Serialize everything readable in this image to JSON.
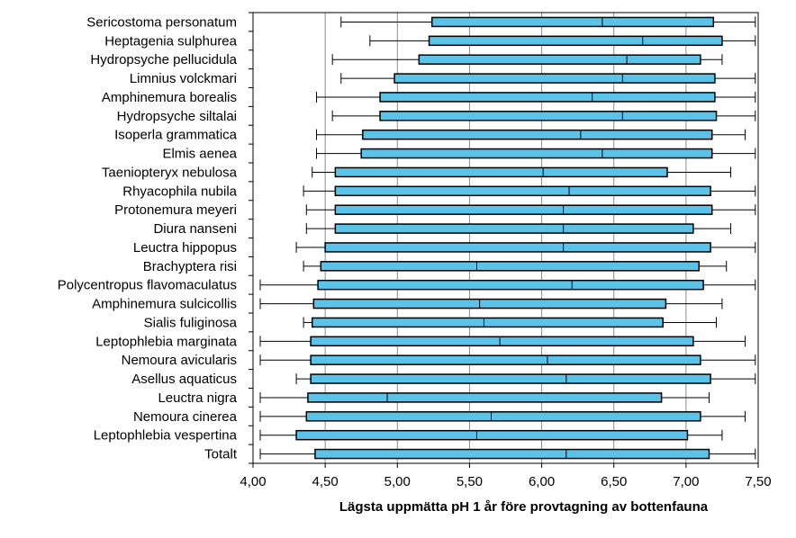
{
  "chart_data": {
    "type": "boxplot",
    "orientation": "horizontal",
    "xlabel": "Lägsta uppmätta pH 1 år före provtagning av bottenfauna",
    "xlim": [
      4.0,
      7.5
    ],
    "x_ticks": [
      4.0,
      4.5,
      5.0,
      5.5,
      6.0,
      6.5,
      7.0,
      7.5
    ],
    "x_tick_labels": [
      "4,00",
      "4,50",
      "5,00",
      "5,50",
      "6,00",
      "6,50",
      "7,00",
      "7,50"
    ],
    "grid": "vertical major gridlines",
    "box_color": "#5BC3E8",
    "series": [
      {
        "name": "Sericostoma personatum",
        "min": 4.61,
        "q1": 5.24,
        "median": 6.42,
        "q3": 7.19,
        "max": 7.48
      },
      {
        "name": "Heptagenia sulphurea",
        "min": 4.81,
        "q1": 5.22,
        "median": 6.7,
        "q3": 7.25,
        "max": 7.48
      },
      {
        "name": "Hydropsyche pellucidula",
        "min": 4.55,
        "q1": 5.15,
        "median": 6.59,
        "q3": 7.1,
        "max": 7.25
      },
      {
        "name": "Limnius volckmari",
        "min": 4.61,
        "q1": 4.98,
        "median": 6.56,
        "q3": 7.2,
        "max": 7.48
      },
      {
        "name": "Amphinemura borealis",
        "min": 4.44,
        "q1": 4.88,
        "median": 6.35,
        "q3": 7.2,
        "max": 7.48
      },
      {
        "name": "Hydropsyche siltalai",
        "min": 4.55,
        "q1": 4.88,
        "median": 6.56,
        "q3": 7.21,
        "max": 7.48
      },
      {
        "name": "Isoperla grammatica",
        "min": 4.44,
        "q1": 4.76,
        "median": 6.27,
        "q3": 7.18,
        "max": 7.41
      },
      {
        "name": "Elmis aenea",
        "min": 4.44,
        "q1": 4.75,
        "median": 6.42,
        "q3": 7.18,
        "max": 7.48
      },
      {
        "name": "Taeniopteryx nebulosa",
        "min": 4.41,
        "q1": 4.57,
        "median": 6.01,
        "q3": 6.87,
        "max": 7.31
      },
      {
        "name": "Rhyacophila nubila",
        "min": 4.35,
        "q1": 4.57,
        "median": 6.19,
        "q3": 7.17,
        "max": 7.48
      },
      {
        "name": "Protonemura meyeri",
        "min": 4.37,
        "q1": 4.57,
        "median": 6.15,
        "q3": 7.18,
        "max": 7.48
      },
      {
        "name": "Diura nanseni",
        "min": 4.37,
        "q1": 4.57,
        "median": 6.15,
        "q3": 7.05,
        "max": 7.31
      },
      {
        "name": "Leuctra hippopus",
        "min": 4.3,
        "q1": 4.5,
        "median": 6.15,
        "q3": 7.17,
        "max": 7.48
      },
      {
        "name": "Brachyptera risi",
        "min": 4.35,
        "q1": 4.47,
        "median": 5.55,
        "q3": 7.09,
        "max": 7.28
      },
      {
        "name": "Polycentropus flavomaculatus",
        "min": 4.05,
        "q1": 4.45,
        "median": 6.21,
        "q3": 7.12,
        "max": 7.48
      },
      {
        "name": "Amphinemura sulcicollis",
        "min": 4.05,
        "q1": 4.42,
        "median": 5.57,
        "q3": 6.86,
        "max": 7.25
      },
      {
        "name": "Sialis fuliginosa",
        "min": 4.35,
        "q1": 4.41,
        "median": 5.6,
        "q3": 6.84,
        "max": 7.21
      },
      {
        "name": "Leptophlebia marginata",
        "min": 4.05,
        "q1": 4.4,
        "median": 5.71,
        "q3": 7.05,
        "max": 7.41
      },
      {
        "name": "Nemoura avicularis",
        "min": 4.05,
        "q1": 4.4,
        "median": 6.04,
        "q3": 7.1,
        "max": 7.48
      },
      {
        "name": "Asellus aquaticus",
        "min": 4.3,
        "q1": 4.4,
        "median": 6.17,
        "q3": 7.17,
        "max": 7.48
      },
      {
        "name": "Leuctra nigra",
        "min": 4.05,
        "q1": 4.38,
        "median": 4.93,
        "q3": 6.83,
        "max": 7.16
      },
      {
        "name": "Nemoura cinerea",
        "min": 4.05,
        "q1": 4.37,
        "median": 5.65,
        "q3": 7.1,
        "max": 7.41
      },
      {
        "name": "Leptophlebia vespertina",
        "min": 4.05,
        "q1": 4.3,
        "median": 5.55,
        "q3": 7.01,
        "max": 7.25
      },
      {
        "name": "Totalt",
        "min": 4.05,
        "q1": 4.43,
        "median": 6.17,
        "q3": 7.16,
        "max": 7.48
      }
    ]
  }
}
